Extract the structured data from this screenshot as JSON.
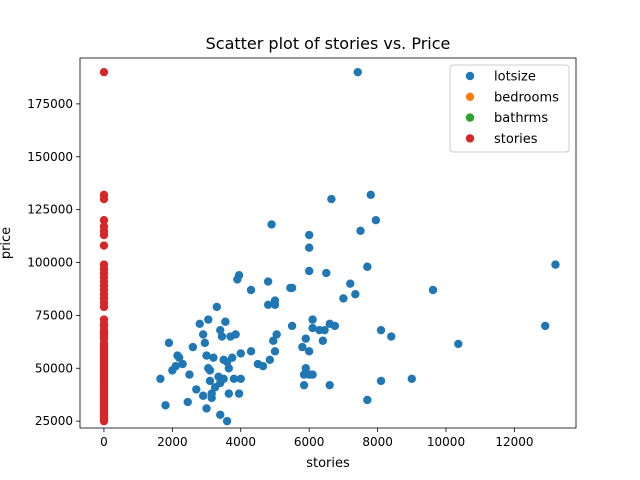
{
  "chart_data": {
    "type": "scatter",
    "title": "Scatter plot of stories vs. Price",
    "xlabel": "stories",
    "ylabel": "price",
    "xlim": [
      -700,
      13800
    ],
    "ylim": [
      21750,
      196700
    ],
    "xticks": [
      0,
      2000,
      4000,
      6000,
      8000,
      10000,
      12000
    ],
    "yticks": [
      25000,
      50000,
      75000,
      100000,
      125000,
      150000,
      175000
    ],
    "xtick_labels": [
      "0",
      "2000",
      "4000",
      "6000",
      "8000",
      "10000",
      "12000"
    ],
    "ytick_labels": [
      "25000",
      "50000",
      "75000",
      "100000",
      "125000",
      "150000",
      "175000"
    ],
    "legend": {
      "placement": "top-right"
    },
    "series": [
      {
        "name": "lotsize",
        "color": "#1f77b4",
        "points": [
          [
            1650,
            45000
          ],
          [
            1800,
            32500
          ],
          [
            1900,
            62000
          ],
          [
            2000,
            49000
          ],
          [
            2100,
            51000
          ],
          [
            2150,
            56000
          ],
          [
            2200,
            55000
          ],
          [
            2300,
            52000
          ],
          [
            2450,
            34000
          ],
          [
            2500,
            47000
          ],
          [
            2600,
            60000
          ],
          [
            2700,
            40000
          ],
          [
            2800,
            71000
          ],
          [
            2900,
            37000
          ],
          [
            2900,
            66000
          ],
          [
            2950,
            62000
          ],
          [
            3000,
            56000
          ],
          [
            3000,
            31000
          ],
          [
            3050,
            50000
          ],
          [
            3050,
            73000
          ],
          [
            3100,
            49000
          ],
          [
            3100,
            44000
          ],
          [
            3150,
            38000
          ],
          [
            3150,
            36000
          ],
          [
            3200,
            55000
          ],
          [
            3250,
            41000
          ],
          [
            3300,
            79000
          ],
          [
            3350,
            46000
          ],
          [
            3400,
            68000
          ],
          [
            3400,
            43000
          ],
          [
            3400,
            28000
          ],
          [
            3450,
            65000
          ],
          [
            3500,
            54000
          ],
          [
            3500,
            45000
          ],
          [
            3550,
            72000
          ],
          [
            3600,
            53000
          ],
          [
            3600,
            25000
          ],
          [
            3650,
            50000
          ],
          [
            3650,
            38000
          ],
          [
            3700,
            65000
          ],
          [
            3750,
            55000
          ],
          [
            3800,
            45000
          ],
          [
            3850,
            66000
          ],
          [
            3900,
            92000
          ],
          [
            3950,
            94000
          ],
          [
            3950,
            38000
          ],
          [
            4000,
            57000
          ],
          [
            4000,
            45000
          ],
          [
            4300,
            87000
          ],
          [
            4300,
            58000
          ],
          [
            4500,
            52000
          ],
          [
            4650,
            51000
          ],
          [
            4800,
            80000
          ],
          [
            4800,
            91000
          ],
          [
            4850,
            54000
          ],
          [
            4900,
            118000
          ],
          [
            4950,
            63000
          ],
          [
            5000,
            80000
          ],
          [
            5000,
            82000
          ],
          [
            5000,
            58000
          ],
          [
            5050,
            66000
          ],
          [
            5450,
            88000
          ],
          [
            5500,
            70000
          ],
          [
            5500,
            88000
          ],
          [
            5800,
            60000
          ],
          [
            5850,
            42000
          ],
          [
            5850,
            47000
          ],
          [
            5900,
            50000
          ],
          [
            5900,
            64000
          ],
          [
            6000,
            113000
          ],
          [
            6000,
            107000
          ],
          [
            6000,
            96000
          ],
          [
            6000,
            58000
          ],
          [
            6000,
            47000
          ],
          [
            6100,
            69000
          ],
          [
            6100,
            73000
          ],
          [
            6100,
            47000
          ],
          [
            6300,
            68000
          ],
          [
            6400,
            63000
          ],
          [
            6450,
            68000
          ],
          [
            6500,
            95000
          ],
          [
            6600,
            71000
          ],
          [
            6600,
            42000
          ],
          [
            6650,
            130000
          ],
          [
            6750,
            70000
          ],
          [
            7000,
            83000
          ],
          [
            7200,
            90000
          ],
          [
            7350,
            85000
          ],
          [
            7420,
            190000
          ],
          [
            7500,
            115000
          ],
          [
            7700,
            98000
          ],
          [
            7700,
            35000
          ],
          [
            7800,
            132000
          ],
          [
            7950,
            120000
          ],
          [
            8100,
            68000
          ],
          [
            8100,
            44000
          ],
          [
            8400,
            65000
          ],
          [
            9000,
            45000
          ],
          [
            9620,
            87000
          ],
          [
            10360,
            61500
          ],
          [
            12900,
            70000
          ],
          [
            13200,
            99000
          ]
        ]
      },
      {
        "name": "bedrooms",
        "color": "#ff7f0e",
        "points": []
      },
      {
        "name": "bathrms",
        "color": "#2ca02c",
        "points": []
      },
      {
        "name": "stories",
        "color": "#d62728",
        "points": [
          [
            1,
            190000
          ],
          [
            1,
            132000
          ],
          [
            1,
            130000
          ],
          [
            1,
            120000
          ],
          [
            1,
            117000
          ],
          [
            1,
            115000
          ],
          [
            1,
            113000
          ],
          [
            1,
            108000
          ],
          [
            1,
            99000
          ],
          [
            1,
            97000
          ],
          [
            1,
            95000
          ],
          [
            1,
            93000
          ],
          [
            1,
            91000
          ],
          [
            1,
            89000
          ],
          [
            1,
            87000
          ],
          [
            1,
            85000
          ],
          [
            1,
            83000
          ],
          [
            1,
            81000
          ],
          [
            1,
            79000
          ],
          [
            1,
            73000
          ],
          [
            1,
            71000
          ],
          [
            1,
            70000
          ],
          [
            1,
            68000
          ],
          [
            1,
            67000
          ],
          [
            1,
            66000
          ],
          [
            1,
            65000
          ],
          [
            1,
            64000
          ],
          [
            1,
            62000
          ],
          [
            1,
            61000
          ],
          [
            1,
            60000
          ],
          [
            1,
            59000
          ],
          [
            1,
            58000
          ],
          [
            1,
            57000
          ],
          [
            1,
            56000
          ],
          [
            1,
            55000
          ],
          [
            1,
            54000
          ],
          [
            1,
            53000
          ],
          [
            1,
            52000
          ],
          [
            1,
            51000
          ],
          [
            1,
            50000
          ],
          [
            1,
            49000
          ],
          [
            1,
            48000
          ],
          [
            1,
            47000
          ],
          [
            1,
            46000
          ],
          [
            1,
            45000
          ],
          [
            1,
            44000
          ],
          [
            1,
            43000
          ],
          [
            1,
            42000
          ],
          [
            1,
            41000
          ],
          [
            1,
            40000
          ],
          [
            1,
            39000
          ],
          [
            1,
            38000
          ],
          [
            1,
            37000
          ],
          [
            1,
            36000
          ],
          [
            1,
            35000
          ],
          [
            1,
            34000
          ],
          [
            1,
            33000
          ],
          [
            1,
            32000
          ],
          [
            1,
            31000
          ],
          [
            1,
            30000
          ],
          [
            1,
            29000
          ],
          [
            1,
            28000
          ],
          [
            1,
            27000
          ],
          [
            1,
            26000
          ],
          [
            1,
            25000
          ]
        ]
      }
    ]
  }
}
